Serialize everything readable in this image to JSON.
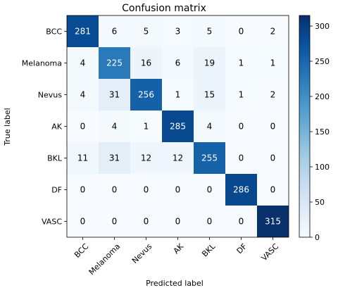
{
  "chart_data": {
    "type": "heatmap",
    "title": "Confusion matrix",
    "xlabel": "Predicted label",
    "ylabel": "True label",
    "x_categories": [
      "BCC",
      "Melanoma",
      "Nevus",
      "AK",
      "BKL",
      "DF",
      "VASC"
    ],
    "y_categories": [
      "BCC",
      "Melanoma",
      "Nevus",
      "AK",
      "BKL",
      "DF",
      "VASC"
    ],
    "values": [
      [
        281,
        6,
        5,
        3,
        5,
        0,
        2
      ],
      [
        4,
        225,
        16,
        6,
        19,
        1,
        1
      ],
      [
        4,
        31,
        256,
        1,
        15,
        1,
        2
      ],
      [
        0,
        4,
        1,
        285,
        4,
        0,
        0
      ],
      [
        11,
        31,
        12,
        12,
        255,
        0,
        0
      ],
      [
        0,
        0,
        0,
        0,
        0,
        286,
        0
      ],
      [
        0,
        0,
        0,
        0,
        0,
        0,
        315
      ]
    ],
    "colormap": "Blues",
    "color_range": [
      0,
      315
    ],
    "colorbar_ticks": [
      0,
      50,
      100,
      150,
      200,
      250,
      300
    ],
    "colorbar_min_color": "#f7fbff",
    "colorbar_max_color": "#08306b",
    "text_color_dark": "#000000",
    "text_color_light": "#ffffff"
  }
}
